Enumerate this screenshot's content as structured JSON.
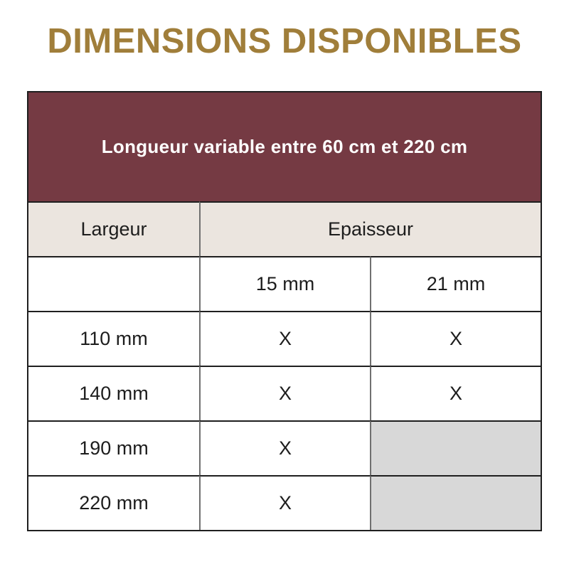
{
  "page": {
    "title": "DIMENSIONS DISPONIBLES"
  },
  "chart_data": {
    "type": "table",
    "title": "DIMENSIONS DISPONIBLES",
    "banner": "Longueur variable entre 60 cm et 220 cm",
    "row_header": "Largeur",
    "group_header": "Epaisseur",
    "columns": [
      "Largeur",
      "15 mm",
      "21 mm"
    ],
    "rows": [
      [
        "110 mm",
        "X",
        "X"
      ],
      [
        "140 mm",
        "X",
        "X"
      ],
      [
        "190 mm",
        "X",
        ""
      ],
      [
        "220 mm",
        "X",
        ""
      ]
    ]
  },
  "colors": {
    "title_gold": "#A07E3A",
    "banner_red": "#753A43",
    "banner_text": "#FFFFFF",
    "header_beige": "#EBE5DF",
    "unavailable_gray": "#D8D8D8",
    "border_dark": "#1F1F1F",
    "border_gray": "#707070",
    "text_dark": "#1D1D1D"
  }
}
